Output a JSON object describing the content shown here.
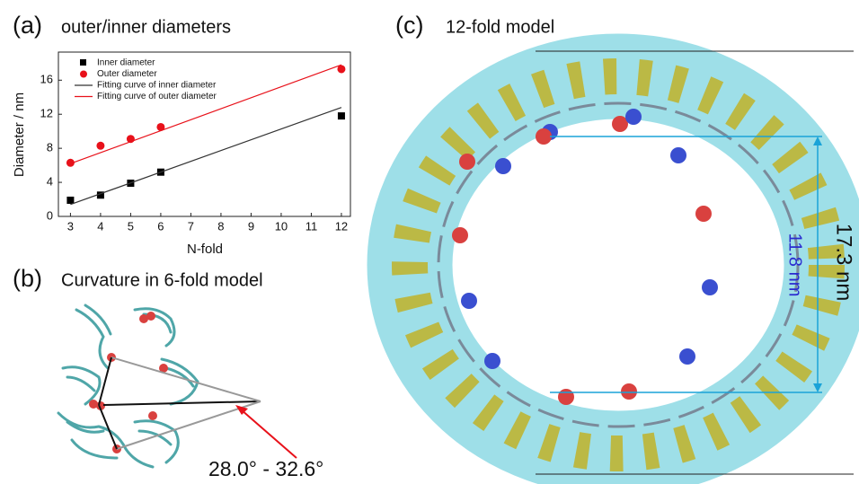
{
  "chart_data": {
    "type": "scatter",
    "title": "outer/inner diameters",
    "panel_label": "(a)",
    "x_label": "N-fold",
    "y_label": "Diameter / nm",
    "xlim": [
      2.6,
      12.3
    ],
    "ylim": [
      0,
      19.3
    ],
    "xticks": [
      3,
      4,
      5,
      6,
      7,
      8,
      9,
      10,
      11,
      12
    ],
    "yticks": [
      0,
      4,
      8,
      12,
      16
    ],
    "legend": "upper left",
    "series": [
      {
        "name": "Inner diameter",
        "color": "#000000",
        "marker": "square",
        "x": [
          3,
          4,
          5,
          6,
          12
        ],
        "values": [
          1.9,
          2.5,
          3.9,
          5.2,
          11.8
        ]
      },
      {
        "name": "Outer diameter",
        "color": "#e8111a",
        "marker": "circle",
        "x": [
          3,
          4,
          5,
          6,
          12
        ],
        "values": [
          6.3,
          8.3,
          9.1,
          10.5,
          17.3
        ]
      },
      {
        "name": "Fitting curve of inner diameter",
        "color": "#333333",
        "marker": "line",
        "x": [
          3,
          12
        ],
        "values": [
          1.4,
          12.8
        ]
      },
      {
        "name": "Fitting curve of outer diameter",
        "color": "#e8111a",
        "marker": "line",
        "x": [
          3,
          12
        ],
        "values": [
          6.2,
          17.8
        ]
      }
    ]
  },
  "panels": {
    "b": {
      "label": "(b)",
      "title": "Curvature in 6-fold model",
      "angle": "28.0° - 32.6°"
    },
    "c": {
      "label": "(c)",
      "title": "12-fold model",
      "inner": "11.8 nm",
      "outer": "17.3 nm"
    }
  }
}
